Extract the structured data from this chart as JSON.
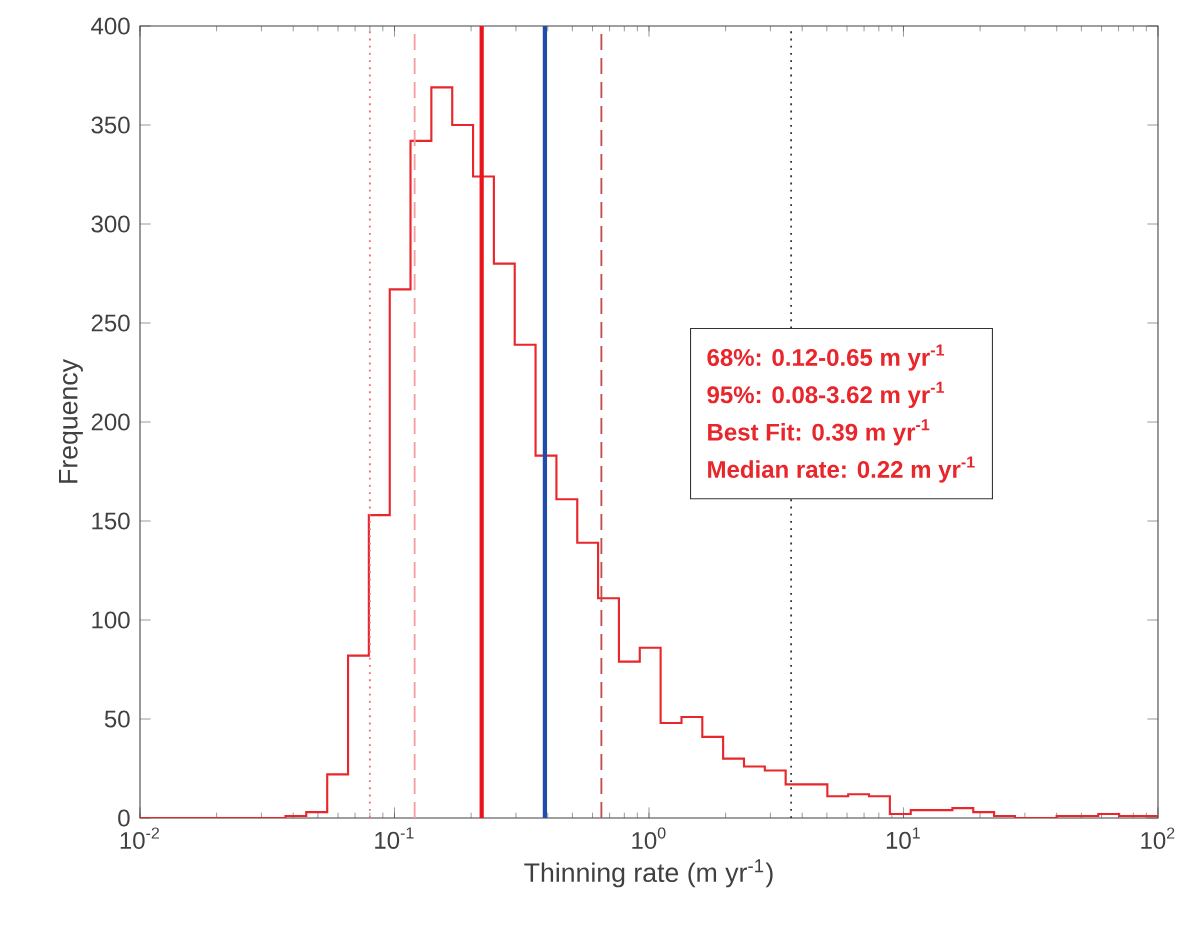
{
  "chart_data": {
    "type": "histogram",
    "xlabel": "Thinning rate (m yr$^{-1}$)",
    "ylabel": "Frequency",
    "bins": [
      0.01,
      0.0373,
      0.045,
      0.0544,
      0.0657,
      0.0793,
      0.0958,
      0.1156,
      0.1396,
      0.1686,
      0.2036,
      0.2458,
      0.2968,
      0.3584,
      0.4328,
      0.5226,
      0.631,
      0.762,
      0.92,
      1.111,
      1.342,
      1.62,
      1.956,
      2.362,
      2.852,
      3.444,
      4.159,
      5.022,
      6.064,
      7.322,
      8.841,
      10.68,
      12.89,
      15.57,
      18.8,
      22.7,
      27.41,
      33.09,
      39.96,
      48.25,
      58.27,
      70.36,
      84.96,
      100
    ],
    "values": [
      0,
      1,
      3,
      22,
      82,
      153,
      267,
      342,
      369,
      350,
      324,
      280,
      239,
      183,
      161,
      139,
      111,
      79,
      86,
      48,
      51,
      41,
      30,
      26,
      24,
      17,
      17,
      11,
      12,
      11,
      2,
      4,
      4,
      5,
      3,
      1,
      0,
      0,
      1,
      1,
      2,
      1,
      1
    ],
    "color": "#e8262b",
    "log": "x",
    "grid": false,
    "xlim": [
      0.01,
      100
    ],
    "ylim": [
      0,
      400
    ],
    "xticks": [
      {
        "value": 0.01,
        "label": "10$^{-2}$"
      },
      {
        "value": 0.1,
        "label": "10$^{-1}$"
      },
      {
        "value": 1,
        "label": "10$^{0}$"
      },
      {
        "value": 10,
        "label": "10$^{1}$"
      },
      {
        "value": 100,
        "label": "10$^{2}$"
      }
    ],
    "yticks": [
      0,
      50,
      100,
      150,
      200,
      250,
      300,
      350,
      400
    ],
    "ref_lines": [
      {
        "axis": "x",
        "value": 0.08,
        "color": "#e8707a",
        "line_style": "dotted"
      },
      {
        "axis": "x",
        "value": 0.12,
        "color": "#f4a0a3",
        "line_style": "dashed"
      },
      {
        "axis": "x",
        "value": 0.22,
        "color": "#e8161b",
        "line_style": "solid"
      },
      {
        "axis": "x",
        "value": 0.39,
        "color": "#1f4ea8",
        "line_style": "solid"
      },
      {
        "axis": "x",
        "value": 0.65,
        "color": "#c0504d",
        "line_style": "dashed"
      },
      {
        "axis": "x",
        "value": 3.62,
        "color": "#333333",
        "line_style": "dotted"
      }
    ],
    "annotations": [
      "68%: 0.12-0.65 m yr$^{-1}$",
      "95%: 0.08-3.62 m yr$^{-1}$",
      "Best Fit: 0.39 m yr$^{-1}$",
      "Median rate: 0.22 m yr$^{-1}$"
    ]
  }
}
